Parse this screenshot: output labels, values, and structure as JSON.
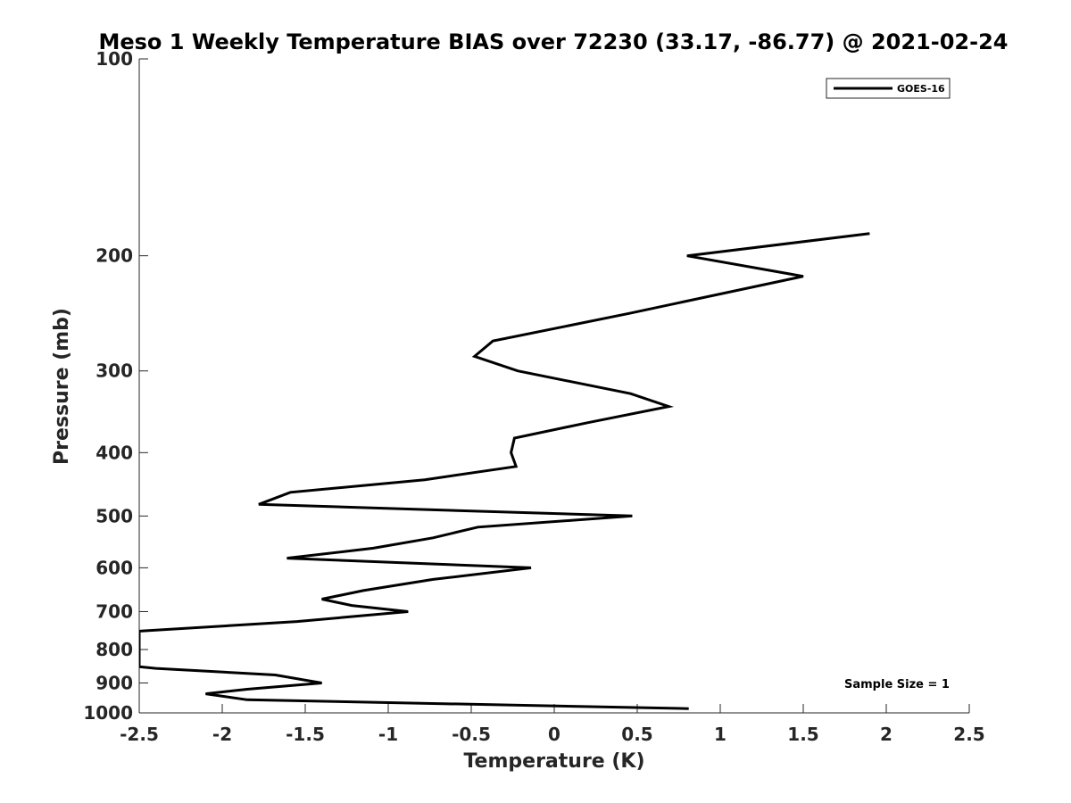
{
  "chart_data": {
    "type": "line",
    "title": "Meso 1 Weekly Temperature BIAS over 72230 (33.17, -86.77) @ 2021-02-24",
    "xlabel": "Temperature (K)",
    "ylabel": "Pressure (mb)",
    "xlim": [
      -2.5,
      2.5
    ],
    "ylim": [
      100,
      1000
    ],
    "yscale": "log",
    "y_reversed": true,
    "grid": false,
    "legend_position": "top-right",
    "x_ticks": [
      {
        "value": -2.5,
        "label": "-2.5"
      },
      {
        "value": -2,
        "label": "-2"
      },
      {
        "value": -1.5,
        "label": "-1.5"
      },
      {
        "value": -1,
        "label": "-1"
      },
      {
        "value": -0.5,
        "label": "-0.5"
      },
      {
        "value": 0,
        "label": "0"
      },
      {
        "value": 0.5,
        "label": "0.5"
      },
      {
        "value": 1,
        "label": "1"
      },
      {
        "value": 1.5,
        "label": "1.5"
      },
      {
        "value": 2,
        "label": "2"
      },
      {
        "value": 2.5,
        "label": "2.5"
      }
    ],
    "y_ticks": [
      {
        "value": 100,
        "label": "100"
      },
      {
        "value": 200,
        "label": "200"
      },
      {
        "value": 300,
        "label": "300"
      },
      {
        "value": 400,
        "label": "400"
      },
      {
        "value": 500,
        "label": "500"
      },
      {
        "value": 600,
        "label": "600"
      },
      {
        "value": 700,
        "label": "700"
      },
      {
        "value": 800,
        "label": "800"
      },
      {
        "value": 900,
        "label": "900"
      },
      {
        "value": 1000,
        "label": "1000"
      }
    ],
    "annotation": "Sample Size = 1",
    "series": [
      {
        "name": "GOES-16",
        "color": "#000000",
        "points": [
          {
            "x": 1.9,
            "y": 185
          },
          {
            "x": 0.8,
            "y": 200
          },
          {
            "x": 1.5,
            "y": 215
          },
          {
            "x": 0.45,
            "y": 245
          },
          {
            "x": -0.37,
            "y": 270
          },
          {
            "x": -0.48,
            "y": 285
          },
          {
            "x": -0.22,
            "y": 300
          },
          {
            "x": 0.46,
            "y": 325
          },
          {
            "x": 0.69,
            "y": 340
          },
          {
            "x": 0.2,
            "y": 360
          },
          {
            "x": -0.24,
            "y": 380
          },
          {
            "x": -0.26,
            "y": 400
          },
          {
            "x": -0.23,
            "y": 420
          },
          {
            "x": -0.78,
            "y": 440
          },
          {
            "x": -1.59,
            "y": 460
          },
          {
            "x": -1.78,
            "y": 480
          },
          {
            "x": 0.47,
            "y": 500
          },
          {
            "x": -0.46,
            "y": 520
          },
          {
            "x": -0.73,
            "y": 540
          },
          {
            "x": -1.09,
            "y": 560
          },
          {
            "x": -1.61,
            "y": 580
          },
          {
            "x": -0.14,
            "y": 600
          },
          {
            "x": -0.73,
            "y": 625
          },
          {
            "x": -1.15,
            "y": 650
          },
          {
            "x": -1.4,
            "y": 670
          },
          {
            "x": -1.22,
            "y": 685
          },
          {
            "x": -0.88,
            "y": 700
          },
          {
            "x": -1.55,
            "y": 725
          },
          {
            "x": -2.5,
            "y": 750
          },
          {
            "x": -2.5,
            "y": 850
          },
          {
            "x": -2.4,
            "y": 855
          },
          {
            "x": -1.68,
            "y": 875
          },
          {
            "x": -1.4,
            "y": 900
          },
          {
            "x": -1.85,
            "y": 920
          },
          {
            "x": -2.1,
            "y": 935
          },
          {
            "x": -1.85,
            "y": 955
          },
          {
            "x": 0.81,
            "y": 985
          }
        ]
      }
    ]
  }
}
